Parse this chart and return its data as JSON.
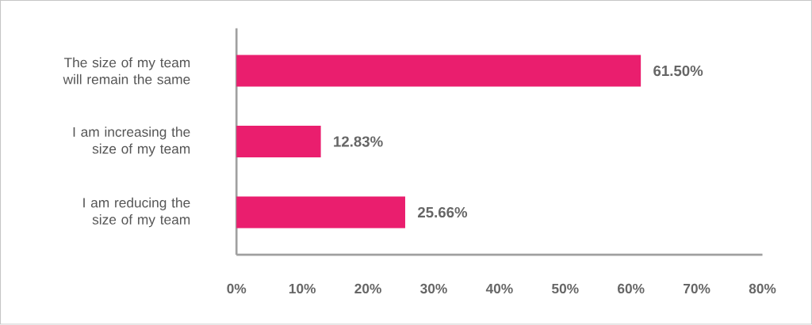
{
  "chart_data": {
    "type": "bar",
    "orientation": "horizontal",
    "categories": [
      "The size of my team will remain the same",
      "I am increasing the size of my team",
      "I am reducing the size of my team"
    ],
    "values": [
      61.5,
      12.83,
      25.66
    ],
    "value_labels": [
      "61.50%",
      "12.83%",
      "25.66%"
    ],
    "color": "#ea1e6e",
    "xlim": [
      0,
      80
    ],
    "xticks": [
      {
        "value": 0,
        "label": "0%"
      },
      {
        "value": 10,
        "label": "10%"
      },
      {
        "value": 20,
        "label": "20%"
      },
      {
        "value": 30,
        "label": "30%"
      },
      {
        "value": 40,
        "label": "40%"
      },
      {
        "value": 50,
        "label": "50%"
      },
      {
        "value": 60,
        "label": "60%"
      },
      {
        "value": 70,
        "label": "70%"
      },
      {
        "value": 80,
        "label": "80%"
      }
    ],
    "grid": false
  }
}
